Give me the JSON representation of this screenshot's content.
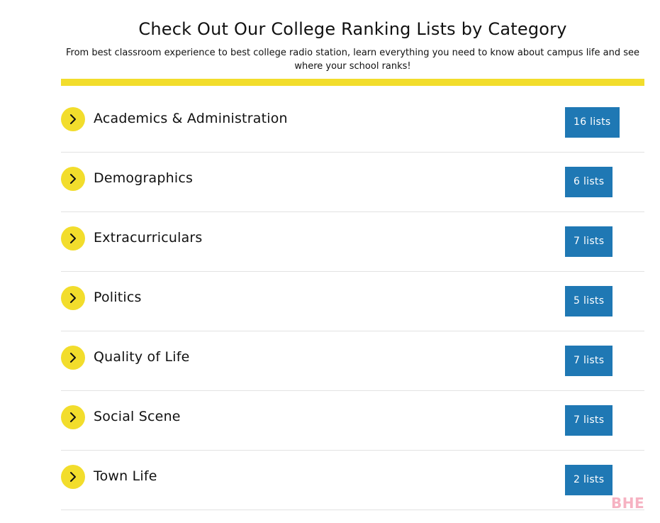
{
  "header": {
    "title": "Check Out Our College Ranking Lists by Category",
    "subtitle": "From best classroom experience to best college radio station, learn everything you need to know about campus life and see where your school ranks!"
  },
  "colors": {
    "accent_yellow": "#f2dd2c",
    "badge_blue": "#1f78b4",
    "divider": "#e2e2e2"
  },
  "categories": [
    {
      "name": "Academics & Administration",
      "count_label": "16 lists",
      "icon": "chevron-right-icon"
    },
    {
      "name": "Demographics",
      "count_label": "6 lists",
      "icon": "chevron-right-icon"
    },
    {
      "name": "Extracurriculars",
      "count_label": "7 lists",
      "icon": "chevron-right-icon"
    },
    {
      "name": "Politics",
      "count_label": "5 lists",
      "icon": "chevron-right-icon"
    },
    {
      "name": "Quality of Life",
      "count_label": "7 lists",
      "icon": "chevron-right-icon"
    },
    {
      "name": "Social Scene",
      "count_label": "7 lists",
      "icon": "chevron-right-icon"
    },
    {
      "name": "Town Life",
      "count_label": "2 lists",
      "icon": "chevron-right-icon"
    }
  ],
  "watermark": "BHE"
}
